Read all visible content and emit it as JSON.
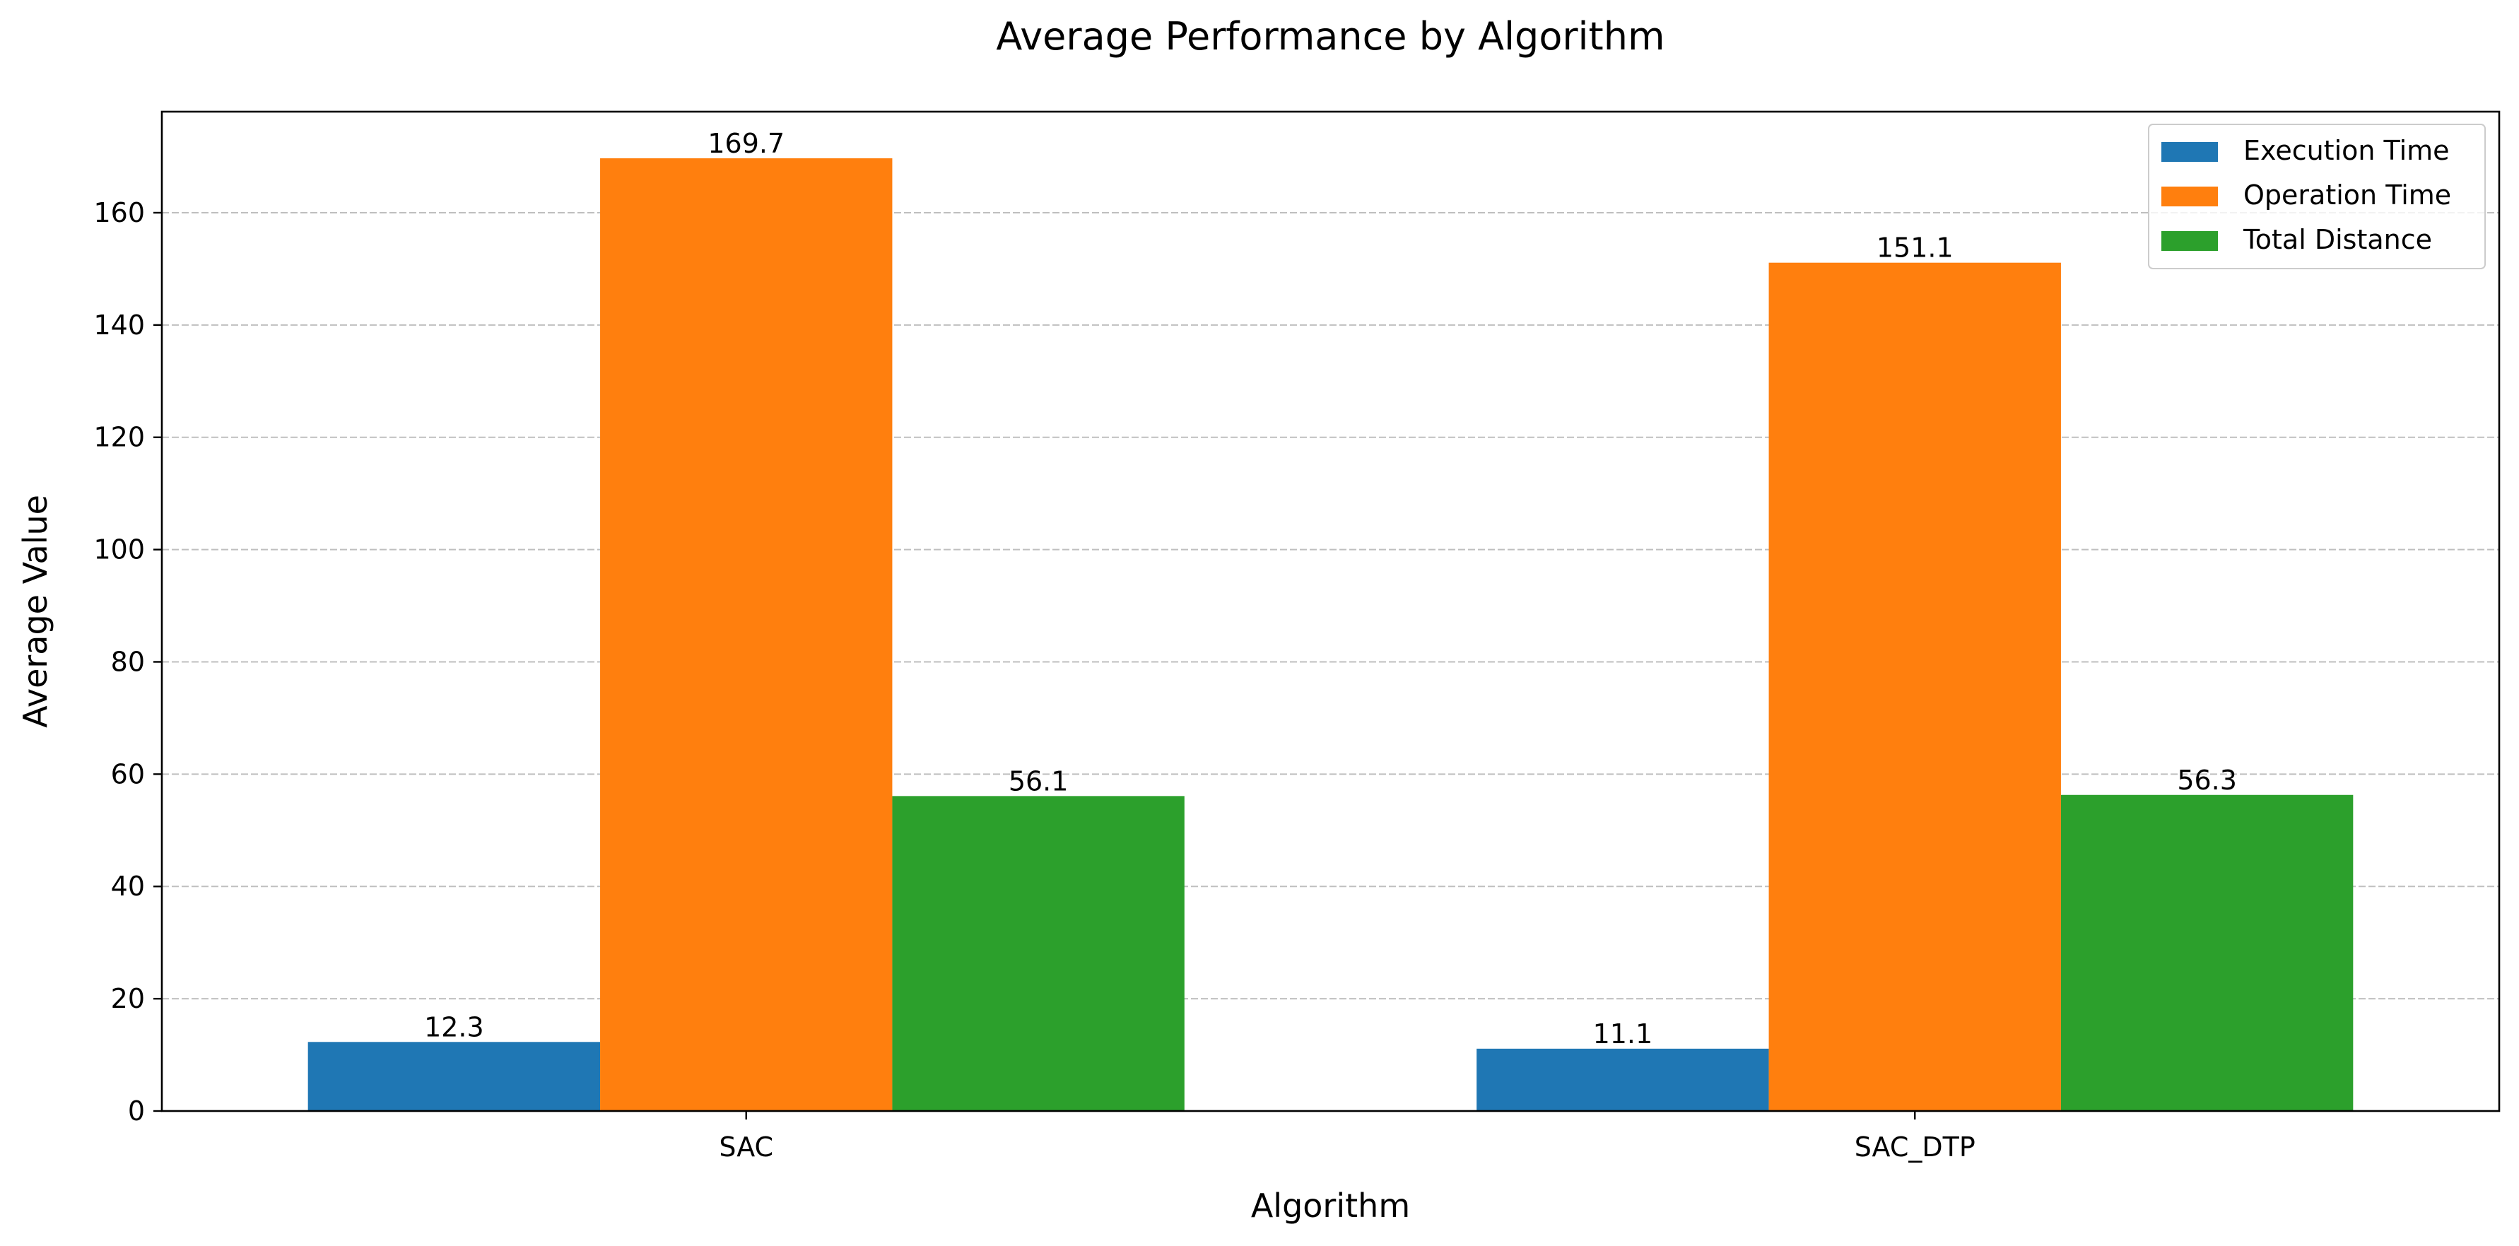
{
  "chart_data": {
    "type": "bar",
    "title": "Average Performance by Algorithm",
    "xlabel": "Algorithm",
    "ylabel": "Average Value",
    "categories": [
      "SAC",
      "SAC_DTP"
    ],
    "series": [
      {
        "name": "Execution Time",
        "values": [
          12.3,
          11.1
        ],
        "color": "#1f77b4"
      },
      {
        "name": "Operation Time",
        "values": [
          169.7,
          151.1
        ],
        "color": "#ff7f0e"
      },
      {
        "name": "Total Distance",
        "values": [
          56.1,
          56.3
        ],
        "color": "#2ca02c"
      }
    ],
    "data_labels": [
      [
        "12.3",
        "11.1"
      ],
      [
        "169.7",
        "151.1"
      ],
      [
        "56.1",
        "56.3"
      ]
    ],
    "ylim": [
      0,
      178
    ],
    "yticks": [
      0,
      20,
      40,
      60,
      80,
      100,
      120,
      140,
      160
    ],
    "ytick_labels": [
      "0",
      "20",
      "40",
      "60",
      "80",
      "100",
      "120",
      "140",
      "160"
    ],
    "grid": {
      "axis": "y",
      "style": "dashed",
      "color": "#b0b0b0"
    },
    "legend_position": "top-right"
  }
}
